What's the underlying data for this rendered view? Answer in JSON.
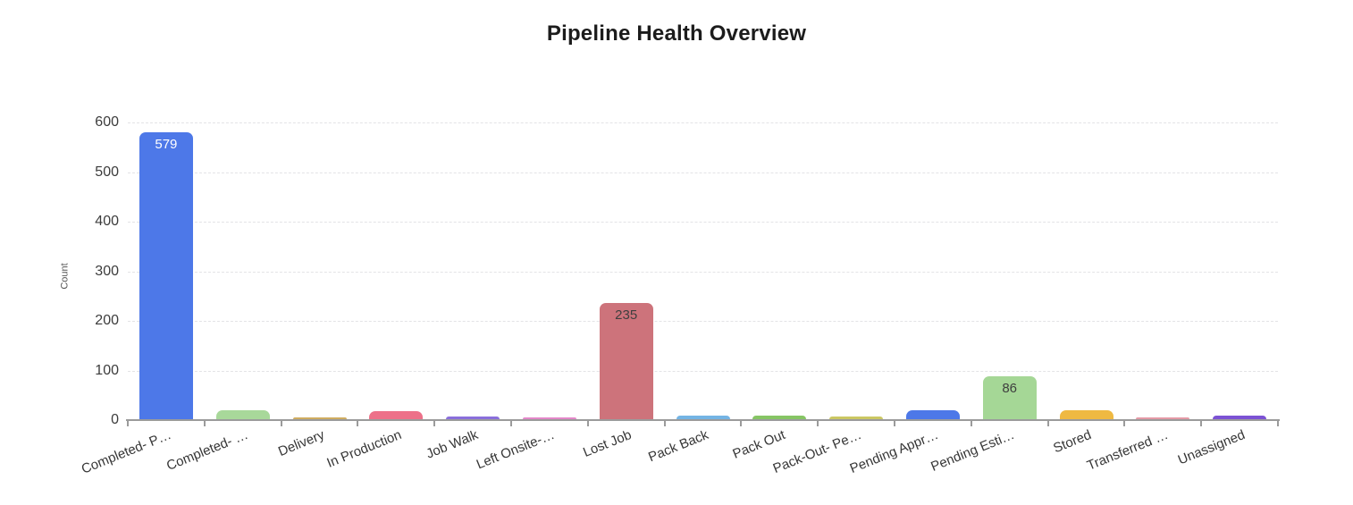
{
  "title": "Pipeline Health Overview",
  "chart_data": {
    "type": "bar",
    "title": "Pipeline Health Overview",
    "xlabel": "",
    "ylabel": "Count",
    "ylim": [
      0,
      600
    ],
    "yticks": [
      0,
      100,
      200,
      300,
      400,
      500,
      600
    ],
    "grid": "horizontal-dashed",
    "legend": "none",
    "categories": [
      "Completed- P…",
      "Completed- …",
      "Delivery",
      "In Production",
      "Job Walk",
      "Left Onsite-…",
      "Lost Job",
      "Pack Back",
      "Pack Out",
      "Pack-Out- Pe…",
      "Pending Appr…",
      "Pending Esti…",
      "Stored",
      "Transferred …",
      "Unassigned"
    ],
    "values": [
      579,
      18,
      3,
      16,
      5,
      3,
      235,
      7,
      8,
      6,
      18,
      86,
      18,
      2,
      8
    ],
    "bar_colors": [
      "#4D78E8",
      "#A8D89A",
      "#CFAC60",
      "#ED7189",
      "#8A6FDB",
      "#E387C9",
      "#CD737B",
      "#74B4E4",
      "#86C564",
      "#CBC763",
      "#4D78E8",
      "#A5D796",
      "#EFB942",
      "#E49AA6",
      "#7C52D4"
    ],
    "data_labels": [
      {
        "index": 0,
        "text": "579",
        "color": "#ffffff"
      },
      {
        "index": 6,
        "text": "235",
        "color": "#3f3f3f"
      },
      {
        "index": 11,
        "text": "86",
        "color": "#3f3f3f"
      }
    ]
  }
}
